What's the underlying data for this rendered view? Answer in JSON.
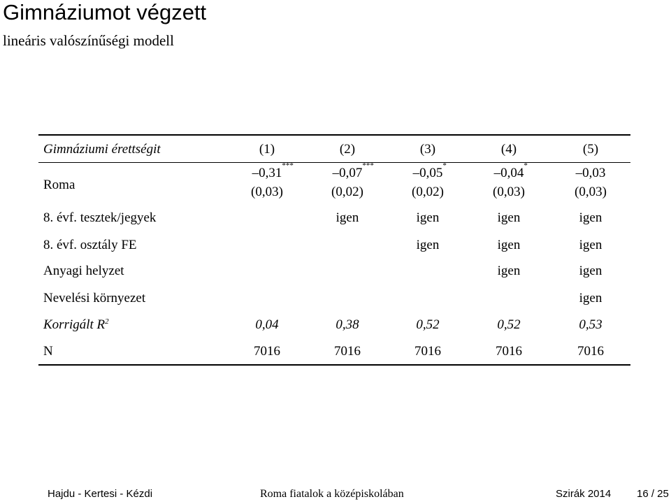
{
  "header": {
    "title": "Gimnáziumot végzett",
    "subtitle": "lineáris valószínűségi modell"
  },
  "table": {
    "columns": [
      "Gimnáziumi érettségit",
      "(1)",
      "(2)",
      "(3)",
      "(4)",
      "(5)"
    ],
    "roma": {
      "label": "Roma",
      "coefficients": [
        {
          "value": "–0,31",
          "stars": "***"
        },
        {
          "value": "–0,07",
          "stars": "***"
        },
        {
          "value": "–0,05",
          "stars": "*"
        },
        {
          "value": "–0,04",
          "stars": "*"
        },
        {
          "value": "–0,03"
        }
      ],
      "standard_errors": [
        "(0,03)",
        "(0,02)",
        "(0,02)",
        "(0,03)",
        "(0,03)"
      ]
    },
    "rows": [
      {
        "label": "8. évf. tesztek/jegyek",
        "cells": [
          null,
          "igen",
          "igen",
          "igen",
          "igen"
        ]
      },
      {
        "label": "8. évf. osztály FE",
        "cells": [
          null,
          null,
          "igen",
          "igen",
          "igen"
        ]
      },
      {
        "label": "Anyagi helyzet",
        "cells": [
          null,
          null,
          null,
          "igen",
          "igen"
        ]
      },
      {
        "label": "Nevelési környezet",
        "cells": [
          null,
          null,
          null,
          null,
          "igen"
        ]
      }
    ],
    "r2": {
      "label": "Korrigált R",
      "sup": "2",
      "cells": [
        "0,04",
        "0,38",
        "0,52",
        "0,52",
        "0,53"
      ]
    },
    "n": {
      "label": "N",
      "cells": [
        "7016",
        "7016",
        "7016",
        "7016",
        "7016"
      ]
    }
  },
  "footer": {
    "authors": "Hajdu - Kertesi - Kézdi",
    "title": "Roma fiatalok a középiskolában",
    "event": "Szirák 2014",
    "page": "16 / 25"
  }
}
